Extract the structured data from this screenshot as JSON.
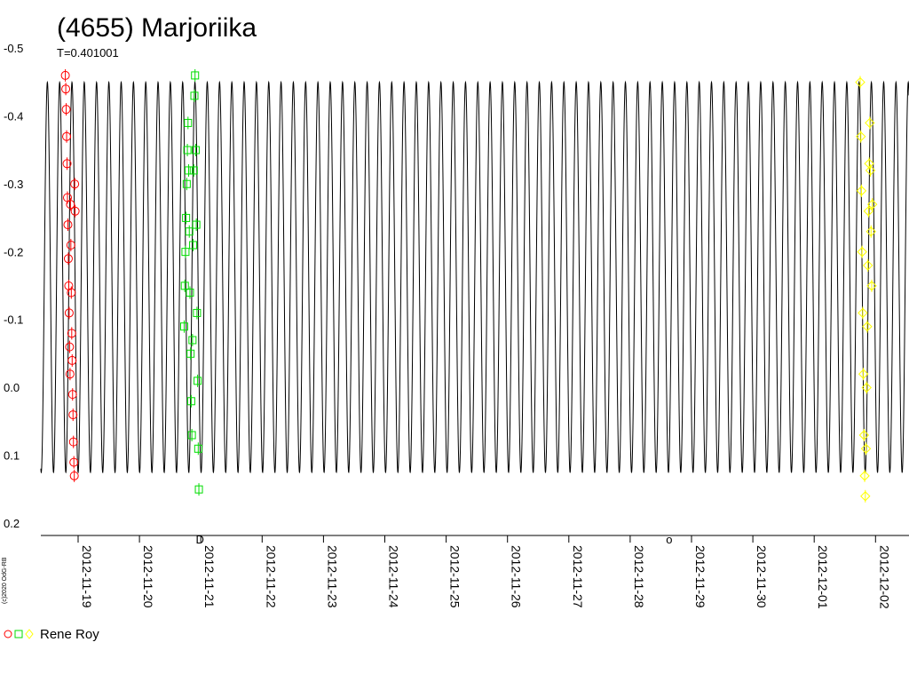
{
  "chart_data": {
    "type": "scatter",
    "title": "(4655) Marjoriika",
    "subtitle": "T=0.401001",
    "copyright": "(c)2020 OdG-RB",
    "y_axis": {
      "ylim": [
        -0.5,
        0.2
      ],
      "inverted": true,
      "ticks": [
        "-0.5",
        "-0.4",
        "-0.3",
        "-0.2",
        "-0.1",
        "0.0",
        "0.1",
        "0.2"
      ]
    },
    "x_axis": {
      "type": "date",
      "ticks": [
        "2012-11-19",
        "2012-11-20",
        "2012-11-21",
        "2012-11-22",
        "2012-11-23",
        "2012-11-24",
        "2012-11-25",
        "2012-11-26",
        "2012-11-27",
        "2012-11-28",
        "2012-11-29",
        "2012-11-30",
        "2012-12-01",
        "2012-12-02"
      ]
    },
    "model_curve": {
      "period_days": 0.401001,
      "min_mag": -0.46,
      "max_mag": 0.115,
      "color": "#000000"
    },
    "legend": {
      "label": "Rene Roy",
      "markers": [
        "circle",
        "square",
        "diamond"
      ],
      "colors": [
        "#ff0000",
        "#00dd00",
        "#ffff00"
      ]
    },
    "series": [
      {
        "marker": "circle",
        "color": "#ff0000",
        "points": [
          [
            "2012-11-18 19:00",
            -0.47
          ],
          [
            "2012-11-18 19:10",
            -0.45
          ],
          [
            "2012-11-18 19:20",
            -0.42
          ],
          [
            "2012-11-18 19:30",
            -0.38
          ],
          [
            "2012-11-18 19:40",
            -0.34
          ],
          [
            "2012-11-18 19:50",
            -0.29
          ],
          [
            "2012-11-18 20:00",
            -0.25
          ],
          [
            "2012-11-18 20:10",
            -0.2
          ],
          [
            "2012-11-18 20:20",
            -0.16
          ],
          [
            "2012-11-18 20:30",
            -0.12
          ],
          [
            "2012-11-18 20:40",
            -0.07
          ],
          [
            "2012-11-18 20:50",
            -0.03
          ],
          [
            "2012-11-18 21:00",
            -0.28
          ],
          [
            "2012-11-18 21:10",
            -0.22
          ],
          [
            "2012-11-18 21:20",
            -0.15
          ],
          [
            "2012-11-18 21:30",
            -0.09
          ],
          [
            "2012-11-18 21:40",
            -0.05
          ],
          [
            "2012-11-18 21:50",
            0.0
          ],
          [
            "2012-11-18 22:00",
            0.03
          ],
          [
            "2012-11-18 22:10",
            0.07
          ],
          [
            "2012-11-18 22:20",
            0.1
          ],
          [
            "2012-11-18 22:30",
            0.12
          ],
          [
            "2012-11-18 22:40",
            -0.31
          ],
          [
            "2012-11-18 22:50",
            -0.27
          ]
        ]
      },
      {
        "marker": "square",
        "color": "#00dd00",
        "points": [
          [
            "2012-11-20 17:30",
            -0.1
          ],
          [
            "2012-11-20 17:45",
            -0.16
          ],
          [
            "2012-11-20 18:00",
            -0.21
          ],
          [
            "2012-11-20 18:15",
            -0.26
          ],
          [
            "2012-11-20 18:30",
            -0.31
          ],
          [
            "2012-11-20 18:45",
            -0.36
          ],
          [
            "2012-11-20 19:00",
            -0.4
          ],
          [
            "2012-11-20 19:15",
            -0.33
          ],
          [
            "2012-11-20 19:30",
            -0.24
          ],
          [
            "2012-11-20 19:45",
            -0.15
          ],
          [
            "2012-11-20 20:00",
            -0.06
          ],
          [
            "2012-11-20 20:15",
            0.01
          ],
          [
            "2012-11-20 20:30",
            0.06
          ],
          [
            "2012-11-20 20:45",
            -0.08
          ],
          [
            "2012-11-20 21:00",
            -0.22
          ],
          [
            "2012-11-20 21:15",
            -0.33
          ],
          [
            "2012-11-20 21:30",
            -0.44
          ],
          [
            "2012-11-20 21:45",
            -0.47
          ],
          [
            "2012-11-20 22:00",
            -0.36
          ],
          [
            "2012-11-20 22:15",
            -0.25
          ],
          [
            "2012-11-20 22:30",
            -0.12
          ],
          [
            "2012-11-20 22:45",
            -0.02
          ],
          [
            "2012-11-20 23:00",
            0.08
          ],
          [
            "2012-11-20 23:15",
            0.14
          ]
        ]
      },
      {
        "marker": "diamond",
        "color": "#ffff00",
        "points": [
          [
            "2012-12-01 18:00",
            -0.46
          ],
          [
            "2012-12-01 18:15",
            -0.38
          ],
          [
            "2012-12-01 18:30",
            -0.3
          ],
          [
            "2012-12-01 18:45",
            -0.21
          ],
          [
            "2012-12-01 19:00",
            -0.12
          ],
          [
            "2012-12-01 19:15",
            -0.03
          ],
          [
            "2012-12-01 19:30",
            0.06
          ],
          [
            "2012-12-01 19:45",
            0.12
          ],
          [
            "2012-12-01 20:00",
            0.15
          ],
          [
            "2012-12-01 20:15",
            0.08
          ],
          [
            "2012-12-01 20:30",
            -0.01
          ],
          [
            "2012-12-01 20:45",
            -0.1
          ],
          [
            "2012-12-01 21:00",
            -0.19
          ],
          [
            "2012-12-01 21:15",
            -0.27
          ],
          [
            "2012-12-01 21:30",
            -0.34
          ],
          [
            "2012-12-01 21:45",
            -0.4
          ],
          [
            "2012-12-01 22:00",
            -0.33
          ],
          [
            "2012-12-01 22:15",
            -0.24
          ],
          [
            "2012-12-01 22:30",
            -0.16
          ],
          [
            "2012-12-01 22:45",
            -0.28
          ]
        ]
      }
    ],
    "axis_annotations": [
      {
        "near": "2012-11-20 22:00",
        "glyph": "D"
      },
      {
        "near": "2012-11-28 14:00",
        "glyph": "o"
      }
    ]
  }
}
